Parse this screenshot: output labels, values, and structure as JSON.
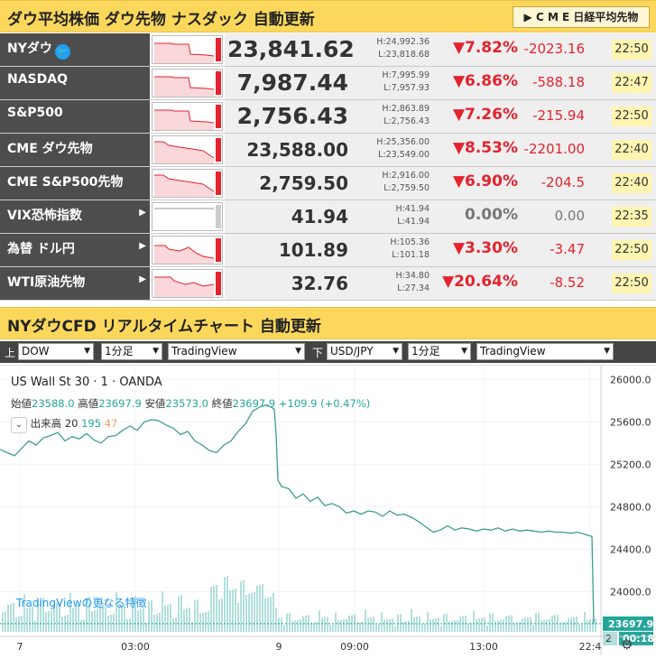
{
  "header": {
    "title": "ダウ平均株価 ダウ先物 ナスダック 自動更新",
    "cme_button": "▶ C M E 日経平均先物"
  },
  "quotes": [
    {
      "name": "NYダウ",
      "twitter": true,
      "price": "23,841.62",
      "high": "H:24,992.36",
      "low": "L:23,818.68",
      "pct": "▼7.82%",
      "change": "-2023.16",
      "time": "22:50",
      "down": true,
      "big": true
    },
    {
      "name": "NASDAQ",
      "price": "7,987.44",
      "high": "H:7,995.99",
      "low": "L:7,957.93",
      "pct": "▼6.86%",
      "change": "-588.18",
      "time": "22:47",
      "down": true,
      "big": true
    },
    {
      "name": "S&P500",
      "price": "2,756.43",
      "high": "H:2,863.89",
      "low": "L:2,756.43",
      "pct": "▼7.26%",
      "change": "-215.94",
      "time": "22:50",
      "down": true,
      "big": true
    },
    {
      "name": "CME ダウ先物",
      "price": "23,588.00",
      "high": "H:25,356.00",
      "low": "L:23,549.00",
      "pct": "▼8.53%",
      "change": "-2201.00",
      "time": "22:40",
      "down": true
    },
    {
      "name": "CME S&P500先物",
      "price": "2,759.50",
      "high": "H:2,916.00",
      "low": "L:2,759.50",
      "pct": "▼6.90%",
      "change": "-204.5",
      "time": "22:40",
      "down": true
    },
    {
      "name": "VIX恐怖指数",
      "arrow": true,
      "price": "41.94",
      "high": "H:41.94",
      "low": "L:41.94",
      "pct": "0.00%",
      "change": "0.00",
      "time": "22:35",
      "down": false
    },
    {
      "name": "為替 ドル円",
      "arrow": true,
      "price": "101.89",
      "high": "H:105.36",
      "low": "L:101.18",
      "pct": "▼3.30%",
      "change": "-3.47",
      "time": "22:50",
      "down": true
    },
    {
      "name": "WTI原油先物",
      "arrow": true,
      "price": "32.76",
      "high": "H:34.80",
      "low": "L:27.34",
      "pct": "▼20.64%",
      "change": "-8.52",
      "time": "22:50",
      "down": true
    }
  ],
  "chart_section": {
    "title": "NYダウCFD リアルタイムチャート 自動更新"
  },
  "controls": {
    "upper_label": "上",
    "lower_label": "下",
    "upper_symbol": "DOW",
    "upper_interval": "1分足",
    "upper_source": "TradingView",
    "lower_symbol": "USD/JPY",
    "lower_interval": "1分足",
    "lower_source": "TradingView"
  },
  "chart_data": {
    "type": "line",
    "title": "US Wall St 30 · 1 · OANDA",
    "ohlc_text": {
      "open_label": "始値",
      "open": "23588.0",
      "high_label": "高値",
      "high": "23697.9",
      "low_label": "安値",
      "low": "23573.0",
      "close_label": "終値",
      "close": "23697.9",
      "change": "+109.9 (+0.47%)"
    },
    "volume_label": "出来高",
    "volume_period": "20",
    "volume_value": "195",
    "volume_value2": "47",
    "watermark": "TradingViewの更なる特徴",
    "y_ticks": [
      "26000.0",
      "25600.0",
      "25200.0",
      "24800.0",
      "24400.0",
      "24000.0"
    ],
    "y_ticks_values": [
      26000,
      25600,
      25200,
      24800,
      24400,
      24000
    ],
    "ylim": [
      23620,
      26130
    ],
    "last_price": "23697.9",
    "countdown": "00:18",
    "lower_price_partial": "2",
    "x_ticks": [
      "7",
      "03:00",
      "9",
      "09:00",
      "13:00",
      "22:4"
    ],
    "x": [
      0,
      8,
      16,
      24,
      32,
      40,
      48,
      56,
      64,
      72,
      80,
      88,
      96,
      104,
      112,
      120,
      128,
      136,
      144,
      152,
      160,
      168,
      176,
      184,
      192,
      200,
      208,
      216,
      224,
      232,
      240,
      248,
      256,
      264,
      272,
      280,
      288,
      296,
      304,
      306,
      308,
      312,
      320,
      328,
      336,
      344,
      352,
      360,
      368,
      376,
      384,
      392,
      400,
      408,
      416,
      424,
      432,
      440,
      448,
      456,
      464,
      472,
      480,
      488,
      496,
      504,
      512,
      520,
      528,
      536,
      544,
      552,
      560,
      568,
      576,
      584,
      592,
      600,
      608,
      616,
      624,
      632,
      640,
      648,
      656,
      658
    ],
    "y": [
      25340,
      25310,
      25280,
      25350,
      25420,
      25380,
      25450,
      25470,
      25500,
      25420,
      25460,
      25440,
      25490,
      25430,
      25400,
      25460,
      25470,
      25520,
      25560,
      25520,
      25600,
      25620,
      25610,
      25570,
      25540,
      25480,
      25510,
      25420,
      25380,
      25330,
      25310,
      25380,
      25420,
      25510,
      25580,
      25700,
      25740,
      25760,
      25720,
      25480,
      25050,
      24990,
      24970,
      24880,
      24920,
      24850,
      24890,
      24810,
      24830,
      24800,
      24740,
      24760,
      24730,
      24760,
      24750,
      24710,
      24760,
      24720,
      24730,
      24700,
      24660,
      24610,
      24560,
      24580,
      24620,
      24580,
      24600,
      24590,
      24570,
      24590,
      24580,
      24600,
      24570,
      24590,
      24570,
      24580,
      24570,
      24560,
      24570,
      24560,
      24560,
      24550,
      24560,
      24540,
      24520,
      23700
    ]
  }
}
